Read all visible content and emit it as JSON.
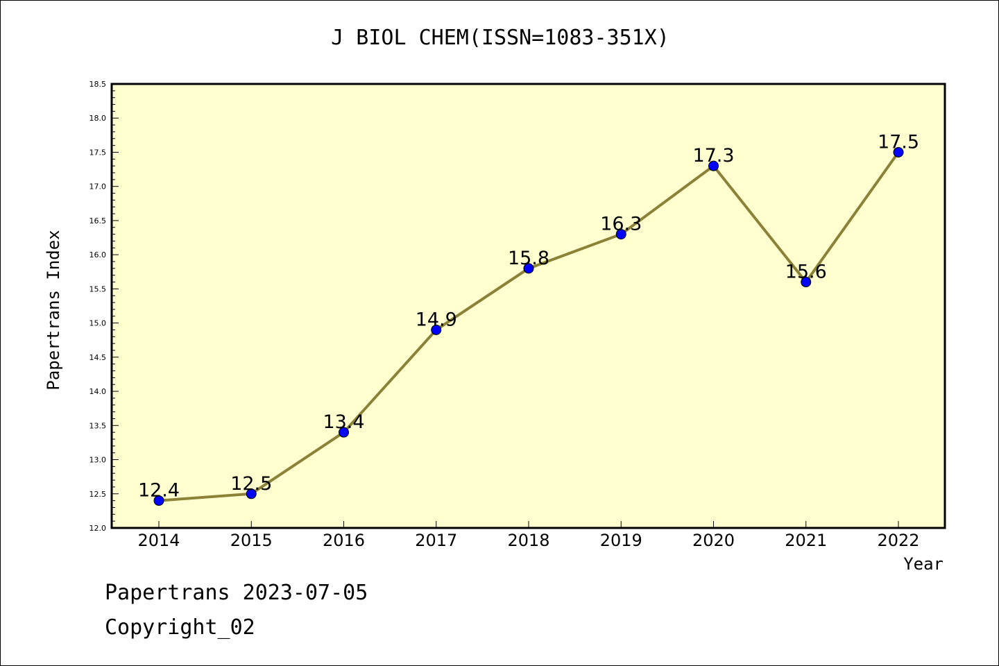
{
  "chart_data": {
    "type": "line",
    "title": "J BIOL CHEM(ISSN=1083-351X)",
    "xlabel": "Year",
    "ylabel": "Papertrans Index",
    "categories": [
      "2014",
      "2015",
      "2016",
      "2017",
      "2018",
      "2019",
      "2020",
      "2021",
      "2022"
    ],
    "series": [
      {
        "values": [
          12.4,
          12.5,
          13.4,
          14.9,
          15.8,
          16.3,
          17.3,
          15.6,
          17.5
        ],
        "data_labels": [
          "12.4",
          "12.5",
          "13.4",
          "14.9",
          "15.8",
          "16.3",
          "17.3",
          "15.6",
          "17.5"
        ]
      }
    ],
    "ylim": [
      12.0,
      18.5
    ],
    "y_ticks": [
      "12.0",
      "12.5",
      "13.0",
      "13.5",
      "14.0",
      "14.5",
      "15.0",
      "15.5",
      "16.0",
      "16.5",
      "17.0",
      "17.5",
      "18.0",
      "18.5"
    ],
    "y_minor_step": 0.1,
    "grid": false,
    "colors": {
      "plot_background": "#ffffd0",
      "line": "#8b8238",
      "marker": "#0000ff",
      "axis": "#000000"
    }
  },
  "footer": {
    "line1": "Papertrans 2023-07-05",
    "line2": "Copyright_02"
  }
}
